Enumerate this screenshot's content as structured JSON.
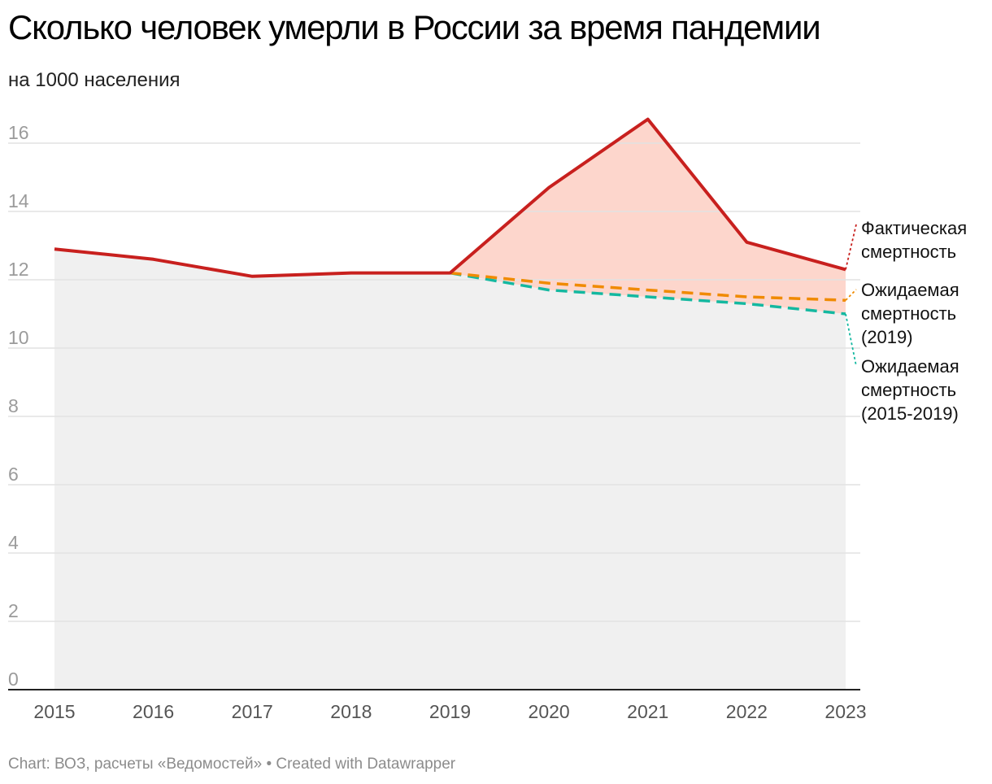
{
  "title": "Сколько человек умерли в России за время пандемии",
  "subtitle": "на 1000 населения",
  "footer": {
    "source": "Chart: ВОЗ, расчеты «Ведомостей» • Created with Datawrapper"
  },
  "chart_data": {
    "type": "line",
    "x": [
      "2015",
      "2016",
      "2017",
      "2018",
      "2019",
      "2020",
      "2021",
      "2022",
      "2023"
    ],
    "ylim": [
      0,
      16
    ],
    "yticks": [
      0,
      2,
      4,
      6,
      8,
      10,
      12,
      14,
      16
    ],
    "grid": true,
    "series": [
      {
        "name": "Фактическая смертность",
        "label_lines": [
          "Фактическая",
          "смертность"
        ],
        "color": "#c8201e",
        "style": "solid",
        "values": [
          12.9,
          12.6,
          12.1,
          12.2,
          12.2,
          14.7,
          16.7,
          13.1,
          12.3
        ]
      },
      {
        "name": "Ожидаемая смертность (2019)",
        "label_lines": [
          "Ожидаемая",
          "смертность",
          "(2019)"
        ],
        "color": "#f08a00",
        "style": "dashed",
        "values": [
          null,
          null,
          null,
          null,
          12.2,
          11.9,
          11.7,
          11.5,
          11.4
        ]
      },
      {
        "name": "Ожидаемая смертность (2015-2019)",
        "label_lines": [
          "Ожидаемая",
          "смертность",
          "(2015-2019)"
        ],
        "color": "#14b8a0",
        "style": "dashed",
        "values": [
          null,
          null,
          null,
          null,
          12.2,
          11.7,
          11.5,
          11.3,
          11.0
        ]
      }
    ],
    "fills": {
      "baseline_color": "#f0f0f0",
      "excess_color": "#fdd6cc"
    },
    "legend": "direct labels right"
  }
}
